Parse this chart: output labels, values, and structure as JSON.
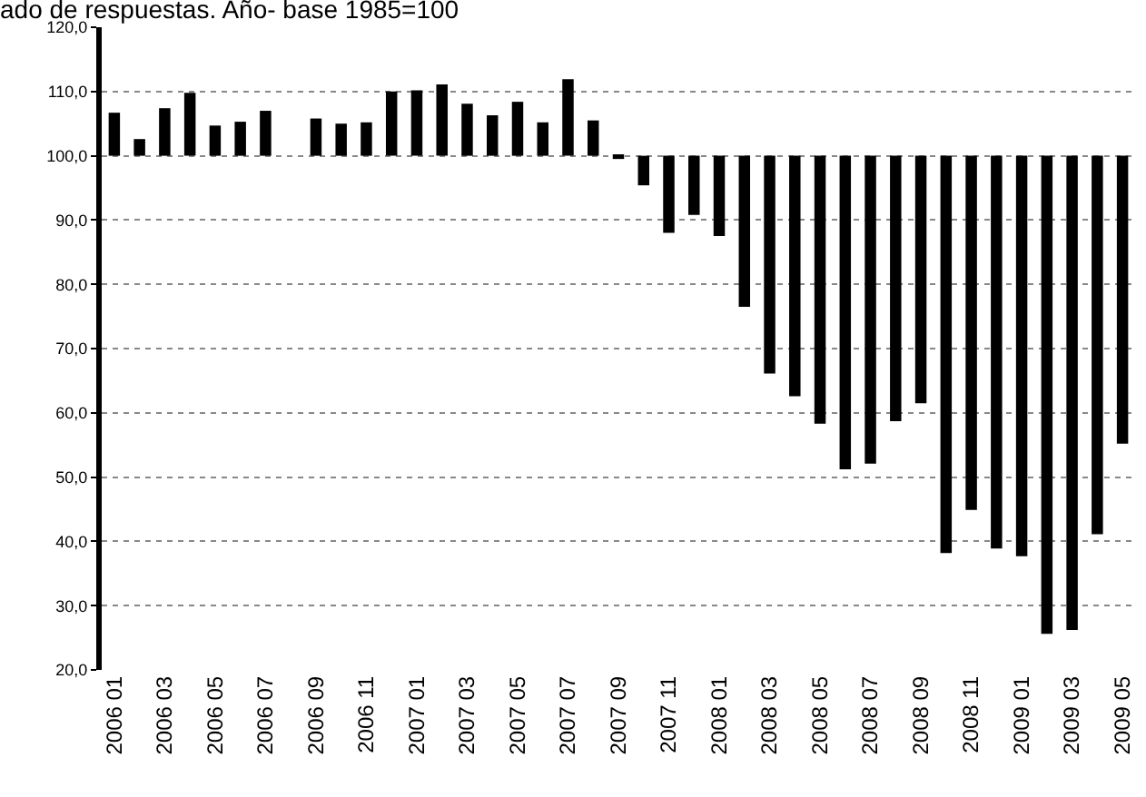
{
  "chart_data": {
    "type": "bar",
    "title": "ado de respuestas. Año- base 1985=100",
    "categories": [
      "2006 01",
      null,
      "2006 03",
      null,
      "2006 05",
      null,
      "2006 07",
      null,
      "2006 09",
      null,
      "2006 11",
      null,
      "2007 01",
      null,
      "2007 03",
      null,
      "2007 05",
      null,
      "2007 07",
      null,
      "2007 09",
      null,
      "2007 11",
      null,
      "2008 01",
      null,
      "2008 03",
      null,
      "2008 05",
      null,
      "2008 07",
      null,
      "2008 09",
      null,
      "2008 11",
      null,
      "2009 01",
      null,
      "2009 03",
      null,
      "2009 05"
    ],
    "base": [
      100,
      100,
      100,
      100,
      100,
      100,
      100,
      null,
      100,
      100,
      100,
      100,
      100,
      100,
      100,
      100,
      100,
      100,
      100,
      100,
      100,
      100,
      100,
      100,
      100,
      100,
      100,
      100,
      100,
      100,
      100,
      100,
      100,
      100,
      100,
      100,
      100,
      100,
      100,
      100,
      100
    ],
    "values": [
      6.7,
      2.6,
      7.4,
      9.8,
      4.7,
      5.3,
      7.0,
      null,
      5.8,
      5.0,
      5.2,
      10.0,
      10.2,
      11.1,
      8.1,
      6.3,
      8.4,
      5.2,
      11.9,
      5.5,
      -0.5,
      -4.6,
      -12.0,
      -9.2,
      -12.5,
      -23.5,
      -33.9,
      -37.4,
      -41.7,
      -48.8,
      -47.9,
      -41.3,
      -38.5,
      -61.8,
      -55.1,
      -61.1,
      -62.3,
      -74.4,
      -73.8,
      -58.9,
      -44.8
    ],
    "color": "#000000",
    "ylim": [
      20,
      120
    ],
    "yticks": [
      {
        "value": 20,
        "label": "20,0"
      },
      {
        "value": 30,
        "label": "30,0"
      },
      {
        "value": 40,
        "label": "40,0"
      },
      {
        "value": 50,
        "label": "50,0"
      },
      {
        "value": 60,
        "label": "60,0"
      },
      {
        "value": 70,
        "label": "70,0"
      },
      {
        "value": 80,
        "label": "80,0"
      },
      {
        "value": 90,
        "label": "90,0"
      },
      {
        "value": 100,
        "label": "100,0"
      },
      {
        "value": 110,
        "label": "110,0"
      },
      {
        "value": 120,
        "label": "120,0"
      }
    ],
    "grid": "y"
  }
}
